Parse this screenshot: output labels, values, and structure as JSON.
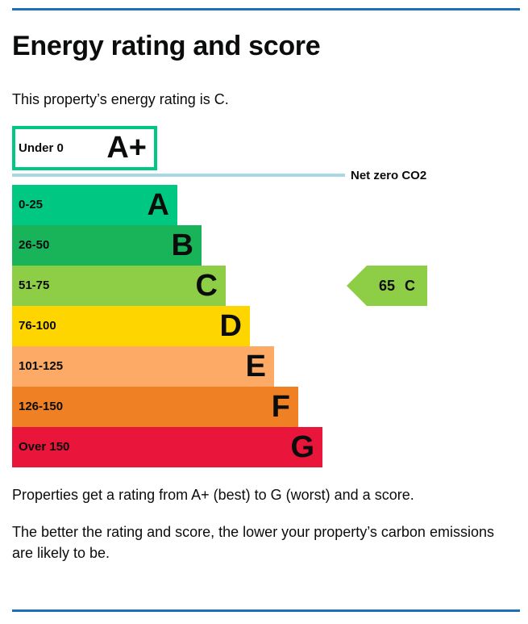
{
  "header": {
    "title": "Energy rating and score"
  },
  "intro": "This property’s energy rating is C.",
  "top_band": {
    "range": "Under 0",
    "letter": "A+",
    "color": "#00c781"
  },
  "net_zero_label": "Net zero CO2",
  "bands": [
    {
      "range": "0-25",
      "letter": "A",
      "color": "#00c781"
    },
    {
      "range": "26-50",
      "letter": "B",
      "color": "#19b459"
    },
    {
      "range": "51-75",
      "letter": "C",
      "color": "#8dce46"
    },
    {
      "range": "76-100",
      "letter": "D",
      "color": "#ffd500"
    },
    {
      "range": "101-125",
      "letter": "E",
      "color": "#fcaa65"
    },
    {
      "range": "126-150",
      "letter": "F",
      "color": "#ef8023"
    },
    {
      "range": "Over 150",
      "letter": "G",
      "color": "#e9153b"
    }
  ],
  "current_rating": {
    "score": 65,
    "letter": "C",
    "band_index": 2,
    "color": "#8dce46"
  },
  "paragraphs": [
    "Properties get a rating from A+ (best) to G (worst) and a score.",
    "The better the rating and score, the lower your property’s carbon emissions are likely to be."
  ]
}
